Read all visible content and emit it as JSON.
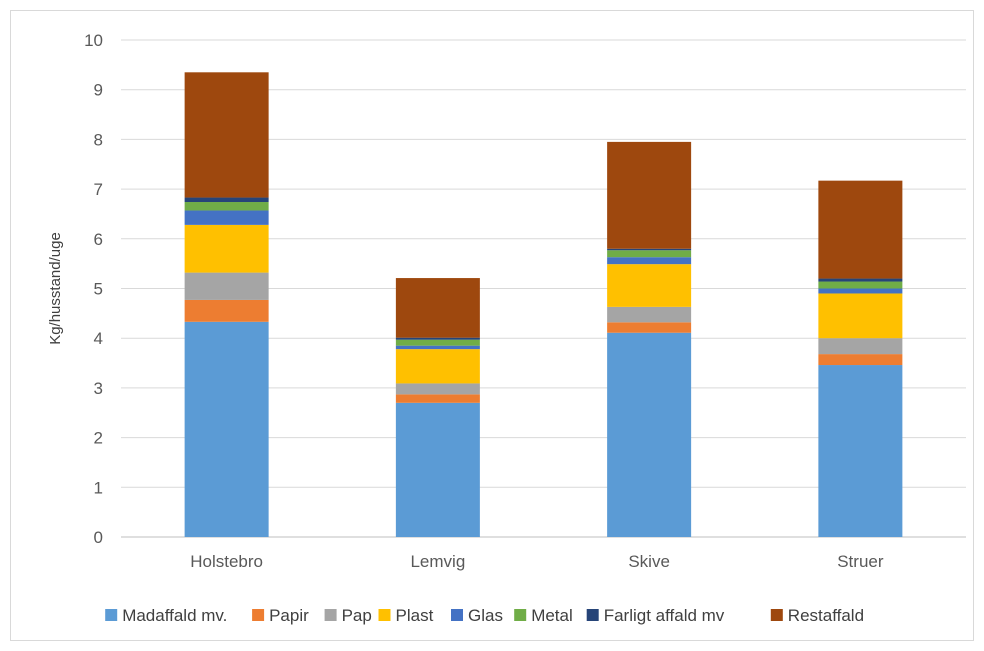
{
  "chart_data": {
    "type": "bar",
    "stacked": true,
    "ylabel": "Kg/husstand/uge",
    "ylim": [
      0,
      10
    ],
    "yticks": [
      "0",
      "1",
      "2",
      "3",
      "4",
      "5",
      "6",
      "7",
      "8",
      "9",
      "10"
    ],
    "grid": true,
    "legend": "bottom",
    "categories": [
      "Holstebro",
      "Lemvig",
      "Skive",
      "Struer"
    ],
    "series": [
      {
        "name": "Madaffald mv.",
        "color": "#5b9bd5",
        "values": [
          4.33,
          2.7,
          4.11,
          3.46
        ]
      },
      {
        "name": "Papir",
        "color": "#ed7d31",
        "values": [
          0.44,
          0.17,
          0.21,
          0.22
        ]
      },
      {
        "name": "Pap",
        "color": "#a5a5a5",
        "values": [
          0.55,
          0.22,
          0.31,
          0.32
        ]
      },
      {
        "name": "Plast",
        "color": "#ffc000",
        "values": [
          0.96,
          0.69,
          0.86,
          0.9
        ]
      },
      {
        "name": "Glas",
        "color": "#4472c4",
        "values": [
          0.29,
          0.07,
          0.14,
          0.1
        ]
      },
      {
        "name": "Metal",
        "color": "#70ad47",
        "values": [
          0.17,
          0.12,
          0.14,
          0.14
        ]
      },
      {
        "name": "Farligt affald mv",
        "color": "#264478",
        "values": [
          0.09,
          0.04,
          0.03,
          0.06
        ]
      },
      {
        "name": "Restaffald",
        "color": "#9e480e",
        "values": [
          2.52,
          1.2,
          2.15,
          1.97
        ]
      }
    ]
  }
}
